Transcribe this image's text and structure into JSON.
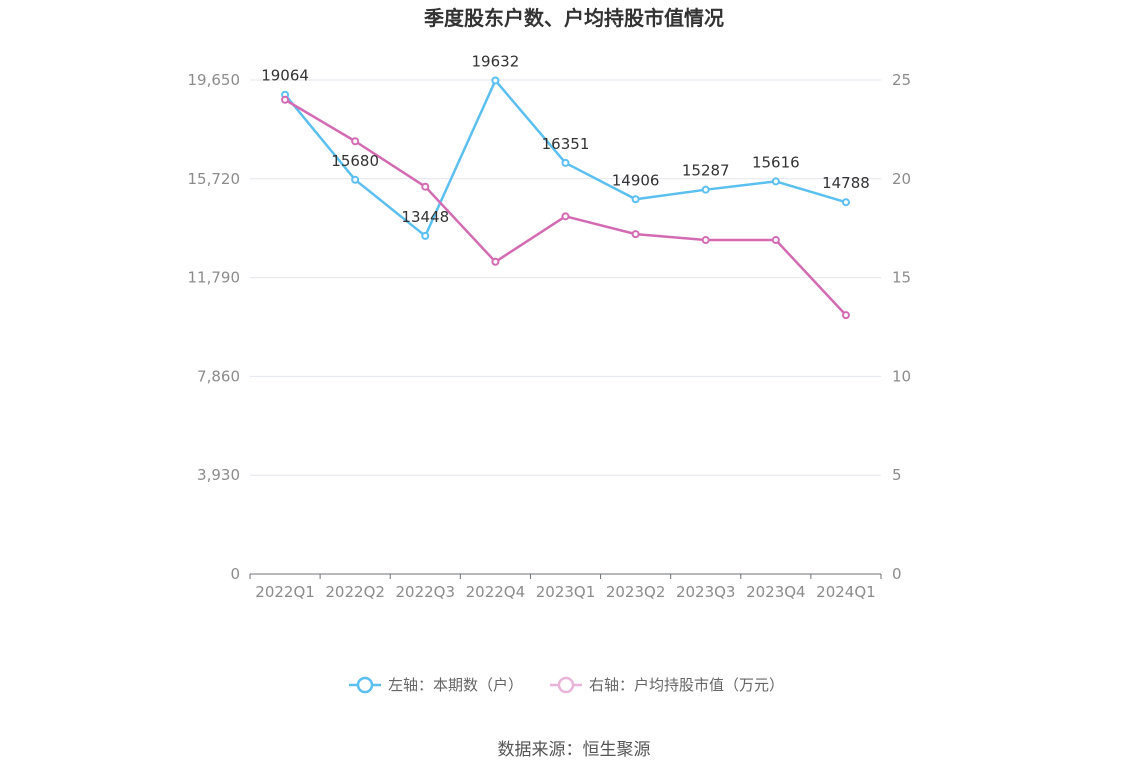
{
  "chart_data": {
    "type": "line",
    "title": "季度股东户数、户均持股市值情况",
    "categories": [
      "2022Q1",
      "2022Q2",
      "2022Q3",
      "2022Q4",
      "2023Q1",
      "2023Q2",
      "2023Q3",
      "2023Q4",
      "2024Q1"
    ],
    "left_axis": {
      "ticks": [
        0,
        3930,
        7860,
        11790,
        15720,
        19650
      ],
      "tick_labels": [
        "0",
        "3,930",
        "7,860",
        "11,790",
        "15,720",
        "19,650"
      ],
      "ylim": [
        0,
        19650
      ]
    },
    "right_axis": {
      "ticks": [
        0,
        5,
        10,
        15,
        20,
        25
      ],
      "tick_labels": [
        "0",
        "5",
        "10",
        "15",
        "20",
        "25"
      ],
      "ylim": [
        0,
        25
      ]
    },
    "series": [
      {
        "name": "左轴：本期数（户）",
        "axis": "left",
        "color": "#5bbfef",
        "values": [
          19064,
          15680,
          13448,
          19632,
          16351,
          14906,
          15287,
          15616,
          14788
        ],
        "labels": [
          "19064",
          "15680",
          "13448",
          "19632",
          "16351",
          "14906",
          "15287",
          "15616",
          "14788"
        ]
      },
      {
        "name": "右轴：户均持股市值（万元）",
        "axis": "right",
        "color": "#d36bb3",
        "values": [
          24.0,
          21.9,
          19.6,
          15.8,
          18.1,
          17.2,
          16.9,
          16.9,
          13.1
        ]
      }
    ],
    "legend_position": "bottom-center",
    "grid": true
  },
  "source": "数据来源：恒生聚源"
}
